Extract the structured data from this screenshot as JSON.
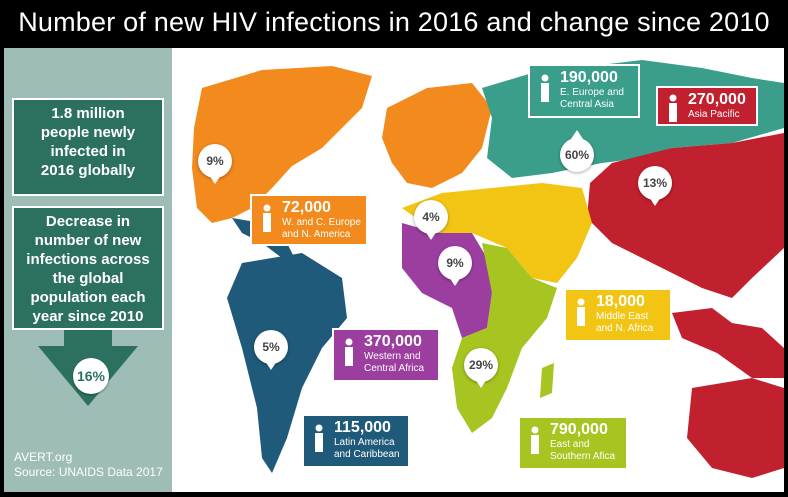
{
  "title": "Number of new HIV infections in 2016 and change since 2010",
  "colors": {
    "global_box": "#2c7160",
    "side_panel": "#9dbdb6",
    "east_europe_central_asia": "#3a9e8b",
    "asia_pacific": "#c1202f",
    "west_central_europe_n_america": "#f28a1e",
    "middle_east_n_africa": "#f2c514",
    "western_central_africa": "#9b3ea0",
    "east_southern_africa": "#a6c521",
    "latin_america_caribbean": "#1f5a7a"
  },
  "global": {
    "count": "1.8 million",
    "count_lines": [
      "people newly",
      "infected in",
      "2016 globally"
    ],
    "decrease_lines": [
      "Decrease in",
      "number of new",
      "infections across",
      "the global",
      "population each",
      "year since 2010"
    ],
    "decrease_pct": "16%"
  },
  "regions": [
    {
      "key": "eeca",
      "count": "190,000",
      "label_lines": [
        "E. Europe and",
        "Central Asia"
      ],
      "change": "60%",
      "direction": "up"
    },
    {
      "key": "ap",
      "count": "270,000",
      "label_lines": [
        "Asia Pacific"
      ],
      "change": "13%",
      "direction": "down"
    },
    {
      "key": "wcena",
      "count": "72,000",
      "label_lines": [
        "W. and C. Europe",
        "and N. America"
      ],
      "change": "9%",
      "direction": "down"
    },
    {
      "key": "mena",
      "count": "18,000",
      "label_lines": [
        "Middle East",
        "and N. Africa"
      ],
      "change": "4%",
      "direction": "down"
    },
    {
      "key": "wca",
      "count": "370,000",
      "label_lines": [
        "Western and",
        "Central Africa"
      ],
      "change": "9%",
      "direction": "down"
    },
    {
      "key": "esa",
      "count": "790,000",
      "label_lines": [
        "East and",
        "Southern Afica"
      ],
      "change": "29%",
      "direction": "down"
    },
    {
      "key": "lac",
      "count": "115,000",
      "label_lines": [
        "Latin America",
        "and Caribbean"
      ],
      "change": "5%",
      "direction": "down"
    }
  ],
  "footer": {
    "source_line1": "AVERT.org",
    "source_line2": "Source: UNAIDS Data 2017"
  }
}
